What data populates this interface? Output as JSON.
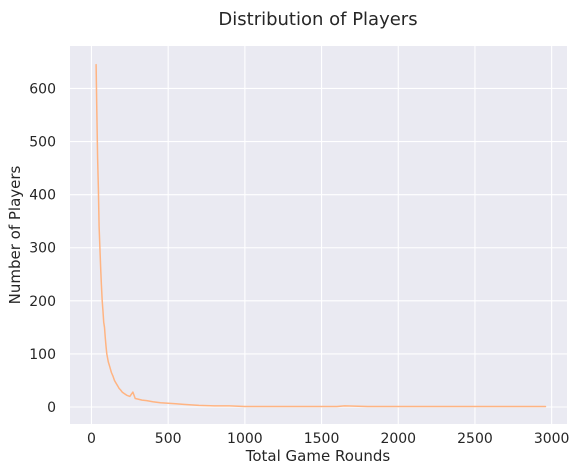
{
  "chart_data": {
    "type": "line",
    "title": "Distribution of Players",
    "xlabel": "Total Game Rounds",
    "ylabel": "Number of Players",
    "xlim": [
      -140,
      3100
    ],
    "ylim": [
      -32,
      680
    ],
    "xticks": [
      0,
      500,
      1000,
      1500,
      2000,
      2500,
      3000
    ],
    "yticks": [
      0,
      100,
      200,
      300,
      400,
      500,
      600
    ],
    "grid": true,
    "legend": "none",
    "colors": {
      "line": "#FFB482",
      "background": "#EAEAF2",
      "grid": "#FFFFFF",
      "text": "#262626"
    },
    "series": [
      {
        "x": [
          30,
          35,
          40,
          45,
          50,
          55,
          60,
          65,
          70,
          75,
          80,
          85,
          90,
          95,
          100,
          110,
          120,
          130,
          140,
          150,
          160,
          170,
          180,
          190,
          200,
          215,
          230,
          250,
          270,
          285,
          300,
          330,
          360,
          400,
          450,
          500,
          550,
          600,
          650,
          700,
          800,
          900,
          1000,
          1200,
          1400,
          1600,
          1650,
          1800,
          2000,
          2200,
          2500,
          2800,
          2960
        ],
        "y": [
          645,
          560,
          470,
          410,
          340,
          300,
          260,
          230,
          200,
          180,
          160,
          150,
          130,
          115,
          100,
          85,
          75,
          65,
          58,
          50,
          45,
          40,
          35,
          32,
          28,
          25,
          22,
          20,
          28,
          16,
          15,
          13,
          12,
          10,
          8,
          7,
          6,
          5,
          4,
          3,
          2,
          2,
          1,
          1,
          1,
          1,
          2,
          1,
          1,
          1,
          1,
          1,
          1
        ]
      }
    ]
  }
}
